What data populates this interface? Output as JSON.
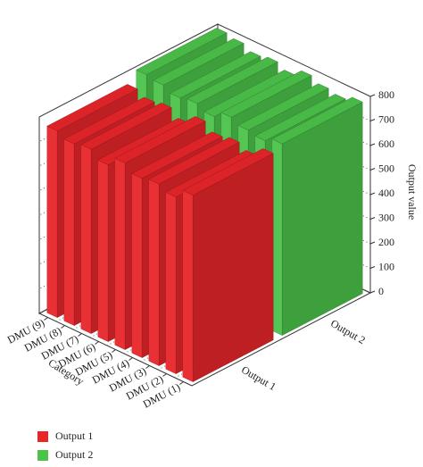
{
  "chart_data": {
    "type": "bar3d",
    "categories": [
      "DMU (1)",
      "DMU (2)",
      "DMU (3)",
      "DMU (4)",
      "DMU (5)",
      "DMU (6)",
      "DMU (7)",
      "DMU (8)",
      "DMU (9)"
    ],
    "series": [
      {
        "name": "Output 1",
        "color": "#e8262a",
        "values": [
          760,
          720,
          740,
          730,
          760,
          720,
          750,
          740,
          760
        ]
      },
      {
        "name": "Output 2",
        "color": "#4cc24a",
        "values": [
          780,
          760,
          770,
          790,
          760,
          780,
          770,
          790,
          800
        ]
      }
    ],
    "xlabel": "Category",
    "ylabel": "Output value",
    "ylim": [
      0,
      800
    ],
    "yticks": [
      0,
      100,
      200,
      300,
      400,
      500,
      600,
      700,
      800
    ],
    "grid": true,
    "legend": "bottom-left"
  }
}
